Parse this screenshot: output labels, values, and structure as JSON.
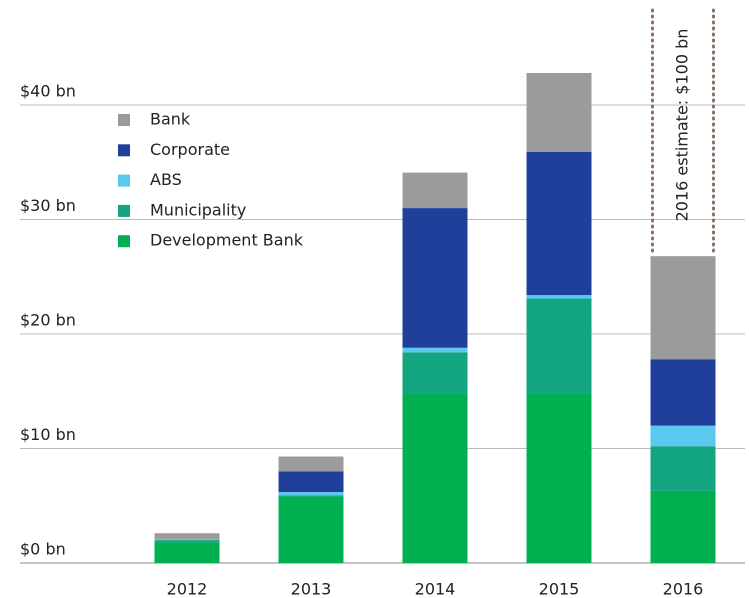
{
  "chart_data": {
    "type": "stacked_bar",
    "categories": [
      "2012",
      "2013",
      "2014",
      "2015",
      "2016"
    ],
    "series": [
      {
        "name": "Development Bank",
        "color": "#00b050",
        "values": [
          1.8,
          5.8,
          14.8,
          14.8,
          6.3
        ]
      },
      {
        "name": "Municipality",
        "color": "#13a57f",
        "values": [
          0.2,
          0.1,
          3.6,
          8.3,
          3.9
        ]
      },
      {
        "name": "ABS",
        "color": "#5bc8ef",
        "values": [
          0.1,
          0.3,
          0.4,
          0.3,
          1.8
        ]
      },
      {
        "name": "Corporate",
        "color": "#1f3f9a",
        "values": [
          0,
          1.8,
          12.2,
          12.5,
          5.8
        ]
      },
      {
        "name": "Bank",
        "color": "#9b9b9c",
        "values": [
          0.5,
          1.3,
          3.1,
          6.9,
          9.0
        ]
      }
    ],
    "ylim": [
      0,
      49
    ],
    "yticks": [
      {
        "value": 0,
        "label": "$0 bn"
      },
      {
        "value": 10,
        "label": "$10 bn"
      },
      {
        "value": 20,
        "label": "$20 bn"
      },
      {
        "value": 30,
        "label": "$30 bn"
      },
      {
        "value": 40,
        "label": "$40 bn"
      }
    ],
    "grid": true,
    "legend": "upper left",
    "annotation": "2016 estimate: $100 bn"
  }
}
